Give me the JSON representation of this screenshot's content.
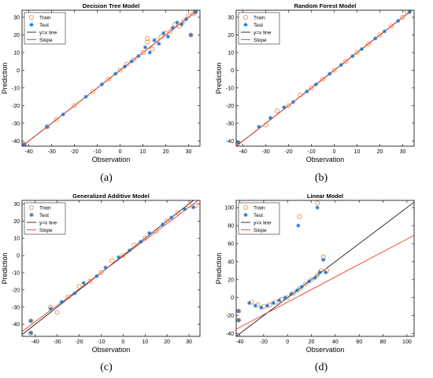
{
  "figure_letters": [
    "(a)",
    "(b)",
    "(c)",
    "(d)"
  ],
  "legend_labels": [
    "Train",
    "Test",
    "y=x line",
    "Slope"
  ],
  "colors": {
    "train": "#f0803c",
    "test": "#1e78c8",
    "yx_line": "#000000",
    "slope": "#e8281e"
  },
  "chart_data": [
    {
      "type": "scatter",
      "title": "Decision Tree Model",
      "xlabel": "Observation",
      "ylabel": "Prediction",
      "xlim": [
        -43,
        35
      ],
      "ylim": [
        -43,
        34
      ],
      "xticks": [
        -40,
        -30,
        -20,
        -10,
        0,
        10,
        20,
        30
      ],
      "yticks": [
        -40,
        -30,
        -20,
        -10,
        0,
        10,
        20,
        30
      ],
      "slope_line": {
        "slope": 1.0,
        "intercept": 0.0
      },
      "series": [
        {
          "name": "Train",
          "marker": "circle",
          "points": [
            [
              -42,
              -42
            ],
            [
              -32,
              -32
            ],
            [
              -28,
              -28
            ],
            [
              -20,
              -20
            ],
            [
              -12,
              -12
            ],
            [
              -5,
              -5
            ],
            [
              0,
              0
            ],
            [
              3,
              3.5
            ],
            [
              6,
              6
            ],
            [
              10,
              10
            ],
            [
              12,
              16
            ],
            [
              14,
              12
            ],
            [
              16,
              17
            ],
            [
              18,
              19
            ],
            [
              20,
              21
            ],
            [
              22,
              22
            ],
            [
              24,
              26
            ],
            [
              26,
              25
            ],
            [
              28,
              28
            ],
            [
              30,
              31
            ],
            [
              32,
              32
            ],
            [
              33,
              33
            ],
            [
              31,
              20
            ],
            [
              12,
              18
            ]
          ]
        },
        {
          "name": "Test",
          "marker": "star",
          "points": [
            [
              -42,
              -42
            ],
            [
              -32,
              -32
            ],
            [
              -25,
              -25
            ],
            [
              -15,
              -15
            ],
            [
              -8,
              -8
            ],
            [
              -2,
              -2
            ],
            [
              2,
              2
            ],
            [
              5,
              5
            ],
            [
              8,
              8
            ],
            [
              11,
              13
            ],
            [
              13,
              10
            ],
            [
              15,
              17
            ],
            [
              17,
              15
            ],
            [
              19,
              21
            ],
            [
              21,
              19
            ],
            [
              23,
              24
            ],
            [
              25,
              27
            ],
            [
              27,
              26
            ],
            [
              29,
              29
            ],
            [
              31,
              20
            ],
            [
              33,
              33
            ]
          ]
        }
      ]
    },
    {
      "type": "scatter",
      "title": "Random Forest Model",
      "xlabel": "Observation",
      "ylabel": "Prediction",
      "xlim": [
        -43,
        35
      ],
      "ylim": [
        -43,
        34
      ],
      "xticks": [
        -40,
        -30,
        -20,
        -10,
        0,
        10,
        20,
        30
      ],
      "yticks": [
        -40,
        -30,
        -20,
        -10,
        0,
        10,
        20,
        30
      ],
      "slope_line": {
        "slope": 1.0,
        "intercept": 0.0
      },
      "series": [
        {
          "name": "Train",
          "marker": "circle",
          "points": [
            [
              -42,
              -41
            ],
            [
              -42,
              -44
            ],
            [
              -30,
              -31
            ],
            [
              -25,
              -23
            ],
            [
              -20,
              -20
            ],
            [
              -15,
              -14
            ],
            [
              -10,
              -10
            ],
            [
              -5,
              -5
            ],
            [
              0,
              0
            ],
            [
              5,
              5
            ],
            [
              10,
              10
            ],
            [
              15,
              15
            ],
            [
              20,
              20
            ],
            [
              25,
              25
            ],
            [
              30,
              30
            ],
            [
              32,
              33
            ]
          ]
        },
        {
          "name": "Test",
          "marker": "star",
          "points": [
            [
              -42,
              -41
            ],
            [
              -42,
              -44
            ],
            [
              -33,
              -32
            ],
            [
              -28,
              -27
            ],
            [
              -22,
              -21
            ],
            [
              -18,
              -18
            ],
            [
              -12,
              -12
            ],
            [
              -8,
              -8
            ],
            [
              -2,
              -2
            ],
            [
              3,
              3
            ],
            [
              8,
              8
            ],
            [
              12,
              12
            ],
            [
              18,
              18
            ],
            [
              22,
              22
            ],
            [
              28,
              28
            ],
            [
              33,
              33
            ]
          ]
        }
      ]
    },
    {
      "type": "scatter",
      "title": "Generalized Additive Model",
      "xlabel": "Observation",
      "ylabel": "Prediction",
      "xlim": [
        -46,
        35
      ],
      "ylim": [
        -47,
        32
      ],
      "xticks": [
        -40,
        -30,
        -20,
        -10,
        0,
        10,
        20,
        30
      ],
      "yticks": [
        -40,
        -30,
        -20,
        -10,
        0,
        10,
        20,
        30
      ],
      "slope_line": {
        "slope": 0.95,
        "intercept": -0.5
      },
      "series": [
        {
          "name": "Train",
          "marker": "circle",
          "points": [
            [
              -42,
              -38
            ],
            [
              -42,
              -45
            ],
            [
              -33,
              -30
            ],
            [
              -30,
              -33
            ],
            [
              -25,
              -24
            ],
            [
              -20,
              -18
            ],
            [
              -15,
              -15
            ],
            [
              -10,
              -10
            ],
            [
              -5,
              -3
            ],
            [
              0,
              0
            ],
            [
              5,
              6
            ],
            [
              10,
              10
            ],
            [
              15,
              14
            ],
            [
              20,
              20
            ],
            [
              25,
              25
            ],
            [
              30,
              29
            ],
            [
              33,
              29
            ]
          ]
        },
        {
          "name": "Test",
          "marker": "star",
          "points": [
            [
              -42,
              -38
            ],
            [
              -42,
              -45
            ],
            [
              -33,
              -31
            ],
            [
              -28,
              -27
            ],
            [
              -22,
              -22
            ],
            [
              -18,
              -16
            ],
            [
              -12,
              -12
            ],
            [
              -8,
              -7
            ],
            [
              -2,
              -1
            ],
            [
              3,
              3
            ],
            [
              8,
              8
            ],
            [
              12,
              13
            ],
            [
              18,
              18
            ],
            [
              22,
              22
            ],
            [
              28,
              27
            ],
            [
              32,
              28
            ]
          ]
        }
      ]
    },
    {
      "type": "scatter",
      "title": "Linear Model",
      "xlabel": "Observation",
      "ylabel": "Prediction",
      "xlim": [
        -43,
        106
      ],
      "ylim": [
        -43,
        108
      ],
      "xticks": [
        -40,
        -20,
        0,
        20,
        40,
        60,
        80,
        100
      ],
      "yticks": [
        -40,
        -20,
        0,
        20,
        40,
        60,
        80,
        100
      ],
      "slope_line": {
        "slope": 0.7,
        "intercept": -5
      },
      "series": [
        {
          "name": "Train",
          "marker": "circle",
          "points": [
            [
              -41,
              -15
            ],
            [
              -41,
              -25
            ],
            [
              -30,
              -5
            ],
            [
              -25,
              -8
            ],
            [
              -20,
              -10
            ],
            [
              -15,
              -8
            ],
            [
              -10,
              -5
            ],
            [
              -5,
              -2
            ],
            [
              0,
              0
            ],
            [
              5,
              5
            ],
            [
              10,
              90
            ],
            [
              10,
              10
            ],
            [
              15,
              15
            ],
            [
              20,
              20
            ],
            [
              25,
              105
            ],
            [
              25,
              25
            ],
            [
              28,
              30
            ],
            [
              30,
              45
            ],
            [
              33,
              30
            ]
          ]
        },
        {
          "name": "Test",
          "marker": "star",
          "points": [
            [
              -41,
              -15
            ],
            [
              -41,
              -25
            ],
            [
              -32,
              -6
            ],
            [
              -27,
              -9
            ],
            [
              -22,
              -11
            ],
            [
              -17,
              -9
            ],
            [
              -12,
              -6
            ],
            [
              -7,
              -3
            ],
            [
              -2,
              0
            ],
            [
              3,
              4
            ],
            [
              8,
              8
            ],
            [
              9,
              80
            ],
            [
              12,
              12
            ],
            [
              18,
              18
            ],
            [
              23,
              22
            ],
            [
              25,
              100
            ],
            [
              27,
              28
            ],
            [
              30,
              42
            ],
            [
              32,
              28
            ]
          ]
        }
      ]
    }
  ]
}
